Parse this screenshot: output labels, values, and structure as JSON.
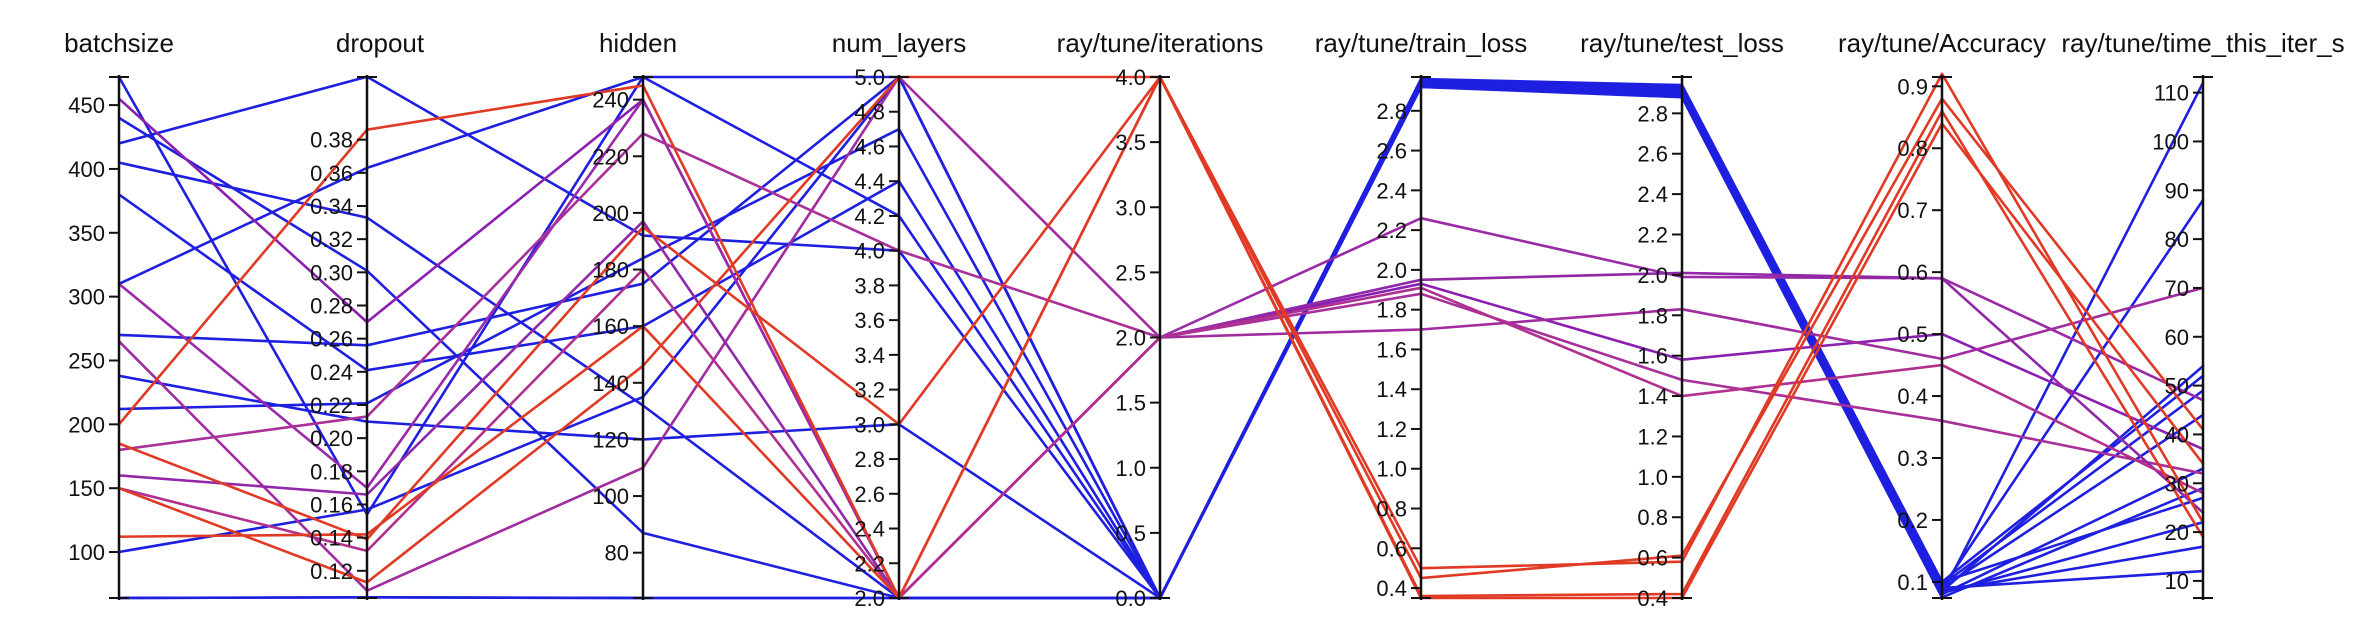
{
  "chart_data": {
    "type": "parallel_coordinates",
    "colors": {
      "low": "#1f1fe0",
      "high": "#e03a25"
    },
    "axes": [
      {
        "name": "batchsize",
        "range": [
          64,
          472
        ],
        "ticks": [
          100,
          150,
          200,
          250,
          300,
          350,
          400,
          450
        ]
      },
      {
        "name": "dropout",
        "range": [
          0.1036,
          0.4178
        ],
        "ticks": [
          0.12,
          0.14,
          0.16,
          0.18,
          0.2,
          0.22,
          0.24,
          0.26,
          0.28,
          0.3,
          0.32,
          0.34,
          0.36,
          0.38
        ]
      },
      {
        "name": "hidden",
        "range": [
          64,
          248
        ],
        "ticks": [
          80,
          100,
          120,
          140,
          160,
          180,
          200,
          220,
          240
        ]
      },
      {
        "name": "num_layers",
        "range": [
          2.0,
          5.0
        ],
        "ticks": [
          2.0,
          2.2,
          2.4,
          2.6,
          2.8,
          3.0,
          3.2,
          3.4,
          3.6,
          3.8,
          4.0,
          4.2,
          4.4,
          4.6,
          4.8,
          5.0
        ]
      },
      {
        "name": "ray/tune/iterations",
        "range": [
          0.0,
          4.0
        ],
        "ticks": [
          0.0,
          0.5,
          1.0,
          1.5,
          2.0,
          2.5,
          3.0,
          3.5,
          4.0
        ]
      },
      {
        "name": "ray/tune/train_loss",
        "range": [
          0.35,
          2.97
        ],
        "ticks": [
          0.4,
          0.6,
          0.8,
          1.0,
          1.2,
          1.4,
          1.6,
          1.8,
          2.0,
          2.2,
          2.4,
          2.6,
          2.8
        ]
      },
      {
        "name": "ray/tune/test_loss",
        "range": [
          0.4,
          2.98
        ],
        "ticks": [
          0.4,
          0.6,
          0.8,
          1.0,
          1.2,
          1.4,
          1.6,
          1.8,
          2.0,
          2.2,
          2.4,
          2.6,
          2.8
        ]
      },
      {
        "name": "ray/tune/Accuracy",
        "range": [
          0.074,
          0.915
        ],
        "ticks": [
          0.1,
          0.2,
          0.3,
          0.4,
          0.5,
          0.6,
          0.7,
          0.8,
          0.9
        ]
      },
      {
        "name": "ray/tune/time_this_iter_s",
        "range": [
          6.5,
          113.2
        ],
        "ticks": [
          10,
          20,
          30,
          40,
          50,
          60,
          70,
          80,
          90,
          100,
          110
        ]
      }
    ],
    "series": [
      {
        "color": "#1f1fe0",
        "values": [
          472,
          0.154,
          248,
          5.0,
          0.0,
          2.95,
          2.93,
          0.08,
          112
        ]
      },
      {
        "color": "#1f1fe0",
        "values": [
          420,
          0.418,
          192,
          4.0,
          0.0,
          2.93,
          2.91,
          0.09,
          88
        ]
      },
      {
        "color": "#1f1fe0",
        "values": [
          405,
          0.333,
          132,
          2.0,
          0.0,
          2.92,
          2.9,
          0.085,
          54
        ]
      },
      {
        "color": "#1f1fe0",
        "values": [
          310,
          0.363,
          248,
          4.2,
          0.0,
          2.96,
          2.94,
          0.1,
          52
        ]
      },
      {
        "color": "#1f1fe0",
        "values": [
          270,
          0.256,
          175,
          5.0,
          0.0,
          2.94,
          2.92,
          0.095,
          49
        ]
      },
      {
        "color": "#1f1fe0",
        "values": [
          238,
          0.21,
          120,
          3.0,
          0.0,
          2.95,
          2.92,
          0.09,
          44
        ]
      },
      {
        "color": "#1f1fe0",
        "values": [
          212,
          0.221,
          184,
          4.7,
          0.0,
          2.93,
          2.9,
          0.08,
          33
        ]
      },
      {
        "color": "#1f1fe0",
        "values": [
          100,
          0.157,
          135,
          5.0,
          0.0,
          2.94,
          2.91,
          0.1,
          27
        ]
      },
      {
        "color": "#1f1fe0",
        "values": [
          64,
          0.104,
          64,
          2.0,
          0.0,
          2.93,
          2.89,
          0.085,
          17
        ]
      },
      {
        "color": "#1f1fe0",
        "values": [
          64,
          0.104,
          64,
          2.0,
          0.0,
          2.95,
          2.92,
          0.09,
          12
        ]
      },
      {
        "color": "#1f1fe0",
        "values": [
          440,
          0.301,
          87,
          2.0,
          0.0,
          2.92,
          2.88,
          0.075,
          29
        ]
      },
      {
        "color": "#1f1fe0",
        "values": [
          380,
          0.241,
          160,
          4.4,
          0.0,
          2.94,
          2.91,
          0.082,
          22
        ]
      },
      {
        "color": "#8a1fb0",
        "values": [
          455,
          0.27,
          240,
          2.0,
          2.0,
          1.93,
          1.58,
          0.5,
          37
        ]
      },
      {
        "color": "#9a2aa8",
        "values": [
          310,
          0.17,
          240,
          2.0,
          2.0,
          2.26,
          1.99,
          0.59,
          47
        ]
      },
      {
        "color": "#a02ca0",
        "values": [
          265,
          0.108,
          110,
          5.0,
          2.0,
          1.7,
          1.83,
          0.46,
          70
        ]
      },
      {
        "color": "#a83098",
        "values": [
          180,
          0.213,
          228,
          4.0,
          2.0,
          1.88,
          1.48,
          0.36,
          32
        ]
      },
      {
        "color": "#9028a8",
        "values": [
          160,
          0.166,
          197,
          2.0,
          2.0,
          1.95,
          2.01,
          0.59,
          24
        ]
      },
      {
        "color": "#b03090",
        "values": [
          150,
          0.132,
          180,
          2.0,
          2.0,
          1.91,
          1.4,
          0.45,
          28
        ]
      },
      {
        "color": "#e03a25",
        "values": [
          200,
          0.386,
          245,
          2.0,
          4.0,
          0.5,
          0.58,
          0.92,
          22
        ]
      },
      {
        "color": "#e03a25",
        "values": [
          185,
          0.139,
          195,
          3.0,
          4.0,
          0.45,
          0.61,
          0.88,
          41
        ]
      },
      {
        "color": "#e03a25",
        "values": [
          112,
          0.142,
          160,
          2.0,
          4.0,
          0.35,
          0.4,
          0.84,
          34
        ]
      },
      {
        "color": "#e03a25",
        "values": [
          150,
          0.113,
          146,
          5.0,
          4.0,
          0.36,
          0.42,
          0.86,
          19
        ]
      }
    ]
  }
}
